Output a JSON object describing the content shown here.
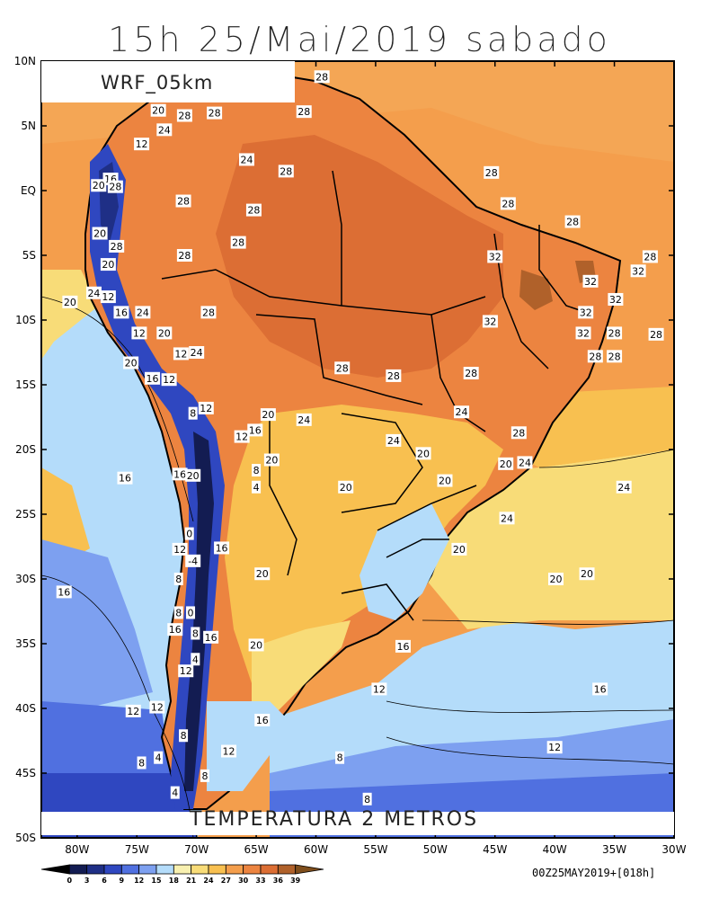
{
  "header": {
    "title": "15h 25/Mai/2019 sabado",
    "model": "WRF_05km"
  },
  "map": {
    "variable_label": "TEMPERATURA 2 METROS",
    "lat_labels": [
      "10N",
      "5N",
      "EQ",
      "5S",
      "10S",
      "15S",
      "20S",
      "25S",
      "30S",
      "35S",
      "40S",
      "45S",
      "50S"
    ],
    "lon_labels": [
      "80W",
      "75W",
      "70W",
      "65W",
      "60W",
      "55W",
      "50W",
      "45W",
      "40W",
      "35W",
      "30W"
    ],
    "contour_labels": [
      {
        "text": "28",
        "lon": -59.5,
        "lat": 8.8
      },
      {
        "text": "20",
        "lon": -73.2,
        "lat": 6.2
      },
      {
        "text": "28",
        "lon": -71.0,
        "lat": 5.8
      },
      {
        "text": "28",
        "lon": -68.5,
        "lat": 6.0
      },
      {
        "text": "28",
        "lon": -61.0,
        "lat": 6.1
      },
      {
        "text": "24",
        "lon": -72.7,
        "lat": 4.7
      },
      {
        "text": "12",
        "lon": -74.6,
        "lat": 3.6
      },
      {
        "text": "24",
        "lon": -65.8,
        "lat": 2.4
      },
      {
        "text": "28",
        "lon": -62.5,
        "lat": 1.5
      },
      {
        "text": "28",
        "lon": -45.3,
        "lat": 1.4
      },
      {
        "text": "16",
        "lon": -77.2,
        "lat": 0.9
      },
      {
        "text": "20",
        "lon": -78.2,
        "lat": 0.4
      },
      {
        "text": "28",
        "lon": -76.8,
        "lat": 0.3
      },
      {
        "text": "28",
        "lon": -71.1,
        "lat": -0.8
      },
      {
        "text": "28",
        "lon": -43.9,
        "lat": -1.0
      },
      {
        "text": "28",
        "lon": -65.2,
        "lat": -1.5
      },
      {
        "text": "28",
        "lon": -38.5,
        "lat": -2.4
      },
      {
        "text": "20",
        "lon": -78.1,
        "lat": -3.3
      },
      {
        "text": "28",
        "lon": -66.5,
        "lat": -4.0
      },
      {
        "text": "28",
        "lon": -76.7,
        "lat": -4.3
      },
      {
        "text": "28",
        "lon": -71.0,
        "lat": -5.0
      },
      {
        "text": "32",
        "lon": -45.0,
        "lat": -5.1
      },
      {
        "text": "28",
        "lon": -32.0,
        "lat": -5.1
      },
      {
        "text": "20",
        "lon": -77.4,
        "lat": -5.7
      },
      {
        "text": "32",
        "lon": -33.0,
        "lat": -6.2
      },
      {
        "text": "32",
        "lon": -37.0,
        "lat": -7.0
      },
      {
        "text": "24",
        "lon": -78.6,
        "lat": -7.9
      },
      {
        "text": "12",
        "lon": -77.4,
        "lat": -8.2
      },
      {
        "text": "32",
        "lon": -34.9,
        "lat": -8.4
      },
      {
        "text": "20",
        "lon": -80.6,
        "lat": -8.6
      },
      {
        "text": "32",
        "lon": -37.4,
        "lat": -9.4
      },
      {
        "text": "16",
        "lon": -76.3,
        "lat": -9.4
      },
      {
        "text": "24",
        "lon": -74.5,
        "lat": -9.4
      },
      {
        "text": "28",
        "lon": -69.0,
        "lat": -9.4
      },
      {
        "text": "32",
        "lon": -45.4,
        "lat": -10.1
      },
      {
        "text": "28",
        "lon": -35.0,
        "lat": -11.0
      },
      {
        "text": "32",
        "lon": -37.6,
        "lat": -11.0
      },
      {
        "text": "28",
        "lon": -31.5,
        "lat": -11.1
      },
      {
        "text": "12",
        "lon": -74.8,
        "lat": -11.0
      },
      {
        "text": "20",
        "lon": -72.7,
        "lat": -11.0
      },
      {
        "text": "12",
        "lon": -71.3,
        "lat": -12.6
      },
      {
        "text": "24",
        "lon": -70.0,
        "lat": -12.5
      },
      {
        "text": "28",
        "lon": -36.6,
        "lat": -12.8
      },
      {
        "text": "28",
        "lon": -35.0,
        "lat": -12.8
      },
      {
        "text": "20",
        "lon": -75.5,
        "lat": -13.3
      },
      {
        "text": "28",
        "lon": -57.8,
        "lat": -13.7
      },
      {
        "text": "28",
        "lon": -53.5,
        "lat": -14.3
      },
      {
        "text": "28",
        "lon": -47.0,
        "lat": -14.1
      },
      {
        "text": "16",
        "lon": -73.7,
        "lat": -14.5
      },
      {
        "text": "12",
        "lon": -72.3,
        "lat": -14.6
      },
      {
        "text": "8",
        "lon": -70.3,
        "lat": -17.2
      },
      {
        "text": "12",
        "lon": -69.2,
        "lat": -16.8
      },
      {
        "text": "20",
        "lon": -64.0,
        "lat": -17.3
      },
      {
        "text": "24",
        "lon": -61.0,
        "lat": -17.7
      },
      {
        "text": "24",
        "lon": -47.8,
        "lat": -17.1
      },
      {
        "text": "16",
        "lon": -65.1,
        "lat": -18.5
      },
      {
        "text": "12",
        "lon": -66.2,
        "lat": -19.0
      },
      {
        "text": "28",
        "lon": -43.0,
        "lat": -18.7
      },
      {
        "text": "24",
        "lon": -53.5,
        "lat": -19.3
      },
      {
        "text": "20",
        "lon": -63.7,
        "lat": -20.8
      },
      {
        "text": "8",
        "lon": -65.0,
        "lat": -21.6
      },
      {
        "text": "20",
        "lon": -51.0,
        "lat": -20.3
      },
      {
        "text": "20",
        "lon": -44.1,
        "lat": -21.1
      },
      {
        "text": "24",
        "lon": -42.5,
        "lat": -21.0
      },
      {
        "text": "16",
        "lon": -76.0,
        "lat": -22.2
      },
      {
        "text": "16",
        "lon": -71.4,
        "lat": -21.9
      },
      {
        "text": "20",
        "lon": -70.3,
        "lat": -22.0
      },
      {
        "text": "20",
        "lon": -49.2,
        "lat": -22.4
      },
      {
        "text": "20",
        "lon": -57.5,
        "lat": -22.9
      },
      {
        "text": "4",
        "lon": -65.0,
        "lat": -22.9
      },
      {
        "text": "24",
        "lon": -34.2,
        "lat": -22.9
      },
      {
        "text": "24",
        "lon": -44.0,
        "lat": -25.3
      },
      {
        "text": "0",
        "lon": -70.6,
        "lat": -26.5
      },
      {
        "text": "20",
        "lon": -48.0,
        "lat": -27.7
      },
      {
        "text": "12",
        "lon": -71.4,
        "lat": -27.7
      },
      {
        "text": "16",
        "lon": -67.9,
        "lat": -27.6
      },
      {
        "text": "-4",
        "lon": -70.3,
        "lat": -28.6
      },
      {
        "text": "20",
        "lon": -64.5,
        "lat": -29.6
      },
      {
        "text": "8",
        "lon": -71.5,
        "lat": -30.0
      },
      {
        "text": "20",
        "lon": -39.9,
        "lat": -30.0
      },
      {
        "text": "20",
        "lon": -37.3,
        "lat": -29.6
      },
      {
        "text": "16",
        "lon": -81.1,
        "lat": -31.0
      },
      {
        "text": "0",
        "lon": -70.5,
        "lat": -32.6
      },
      {
        "text": "8",
        "lon": -71.5,
        "lat": -32.6
      },
      {
        "text": "16",
        "lon": -71.8,
        "lat": -33.9
      },
      {
        "text": "8",
        "lon": -70.1,
        "lat": -34.2
      },
      {
        "text": "16",
        "lon": -68.8,
        "lat": -34.5
      },
      {
        "text": "20",
        "lon": -65.0,
        "lat": -35.1
      },
      {
        "text": "16",
        "lon": -52.7,
        "lat": -35.2
      },
      {
        "text": "4",
        "lon": -70.1,
        "lat": -36.2
      },
      {
        "text": "12",
        "lon": -70.9,
        "lat": -37.1
      },
      {
        "text": "12",
        "lon": -54.7,
        "lat": -38.5
      },
      {
        "text": "16",
        "lon": -36.2,
        "lat": -38.5
      },
      {
        "text": "12",
        "lon": -73.3,
        "lat": -39.9
      },
      {
        "text": "12",
        "lon": -75.3,
        "lat": -40.2
      },
      {
        "text": "16",
        "lon": -64.5,
        "lat": -40.9
      },
      {
        "text": "8",
        "lon": -71.1,
        "lat": -42.1
      },
      {
        "text": "12",
        "lon": -40.0,
        "lat": -43.0
      },
      {
        "text": "12",
        "lon": -67.3,
        "lat": -43.3
      },
      {
        "text": "8",
        "lon": -58.0,
        "lat": -43.8
      },
      {
        "text": "4",
        "lon": -73.2,
        "lat": -43.8
      },
      {
        "text": "8",
        "lon": -74.6,
        "lat": -44.2
      },
      {
        "text": "8",
        "lon": -69.3,
        "lat": -45.2
      },
      {
        "text": "4",
        "lon": -71.8,
        "lat": -46.5
      },
      {
        "text": "8",
        "lon": -55.7,
        "lat": -47.0
      }
    ]
  },
  "legend": {
    "ticks": [
      "0",
      "3",
      "6",
      "9",
      "12",
      "15",
      "18",
      "21",
      "24",
      "27",
      "30",
      "33",
      "36",
      "39"
    ],
    "colors": [
      "#000000",
      "#131c52",
      "#1f2f86",
      "#2f47c0",
      "#5070e0",
      "#7da0f0",
      "#b4dcfa",
      "#f8f0b0",
      "#f8dc78",
      "#f8c050",
      "#f49e4c",
      "#ec8440",
      "#dc6e34",
      "#b0612a",
      "#7f4e1c"
    ]
  },
  "footer": {
    "run_info": "00Z25MAY2019+[018h]"
  }
}
